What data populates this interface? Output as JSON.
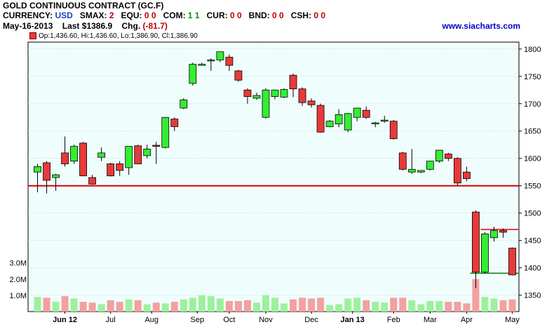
{
  "header": {
    "title": "GOLD CONTINUOUS CONTRACT (GC.F)",
    "currency_label": "CURRENCY:",
    "currency_value": "USD",
    "smax_label": "SMAX:",
    "smax_value": "2",
    "equ_label": "EQU:",
    "equ_value": "0 0",
    "com_label": "COM:",
    "com_value": "1 1",
    "cur_label": "CUR:",
    "cur_value": "0 0",
    "bnd_label": "BND:",
    "bnd_value": "0 0",
    "csh_label": "CSH:",
    "csh_value": "0 0",
    "date": "May-16-2013",
    "last_label": "Last",
    "last_value": "$1386.9",
    "chg_label": "Chg.",
    "chg_value": "(-81.7)",
    "site": "www.siacharts.com",
    "ohlc_legend": "Op:1,436.60, Hi:1,436.60, Lo:1,386.90, Cl:1,386.90"
  },
  "colors": {
    "up": "#33ee33",
    "down": "#e83a3a",
    "plot_bg": "#f0fdfd",
    "support": "#dd0000"
  },
  "chart_data": {
    "type": "candlestick",
    "price_axis": {
      "ticks": [
        1350,
        1400,
        1450,
        1500,
        1550,
        1600,
        1650,
        1700,
        1750,
        1800
      ],
      "range": [
        1320,
        1810
      ]
    },
    "volume_axis": {
      "ticks": [
        "1.0M",
        "2.0M",
        "3.0M"
      ],
      "tick_values": [
        1,
        2,
        3
      ],
      "range": [
        0,
        3.2
      ]
    },
    "x_labels": [
      "Jun 12",
      "Jul",
      "Aug",
      "Sep",
      "Oct",
      "Nov",
      "Dec",
      "Jan 13",
      "Feb",
      "Mar",
      "Apr",
      "May"
    ],
    "x_label_index": [
      3,
      8,
      12.5,
      17.5,
      21,
      25,
      30,
      34.5,
      39,
      43,
      47,
      52
    ],
    "support_line": 1550,
    "resistance_line": 1470,
    "support_line_2": 1390,
    "candles": [
      {
        "o": 1575,
        "h": 1590,
        "l": 1538,
        "c": 1585,
        "v": 0.9
      },
      {
        "o": 1592,
        "h": 1595,
        "l": 1536,
        "c": 1560,
        "v": 0.85
      },
      {
        "o": 1565,
        "h": 1572,
        "l": 1541,
        "c": 1570,
        "v": 0.6
      },
      {
        "o": 1610,
        "h": 1640,
        "l": 1585,
        "c": 1590,
        "v": 0.95
      },
      {
        "o": 1595,
        "h": 1625,
        "l": 1590,
        "c": 1622,
        "v": 0.8
      },
      {
        "o": 1628,
        "h": 1630,
        "l": 1568,
        "c": 1568,
        "v": 0.6
      },
      {
        "o": 1565,
        "h": 1570,
        "l": 1552,
        "c": 1553,
        "v": 0.55
      },
      {
        "o": 1602,
        "h": 1620,
        "l": 1595,
        "c": 1610,
        "v": 0.45
      },
      {
        "o": 1590,
        "h": 1592,
        "l": 1567,
        "c": 1568,
        "v": 0.7
      },
      {
        "o": 1590,
        "h": 1595,
        "l": 1568,
        "c": 1578,
        "v": 0.6
      },
      {
        "o": 1583,
        "h": 1620,
        "l": 1570,
        "c": 1622,
        "v": 0.75
      },
      {
        "o": 1623,
        "h": 1625,
        "l": 1590,
        "c": 1590,
        "v": 0.7
      },
      {
        "o": 1605,
        "h": 1625,
        "l": 1600,
        "c": 1617,
        "v": 0.45
      },
      {
        "o": 1624,
        "h": 1630,
        "l": 1590,
        "c": 1622,
        "v": 0.55
      },
      {
        "o": 1620,
        "h": 1675,
        "l": 1618,
        "c": 1675,
        "v": 0.5
      },
      {
        "o": 1672,
        "h": 1675,
        "l": 1650,
        "c": 1658,
        "v": 0.6
      },
      {
        "o": 1692,
        "h": 1710,
        "l": 1690,
        "c": 1707,
        "v": 0.75
      },
      {
        "o": 1737,
        "h": 1775,
        "l": 1733,
        "c": 1772,
        "v": 0.85
      },
      {
        "o": 1770,
        "h": 1775,
        "l": 1770,
        "c": 1772,
        "v": 1.0
      },
      {
        "o": 1780,
        "h": 1783,
        "l": 1760,
        "c": 1780,
        "v": 0.95
      },
      {
        "o": 1780,
        "h": 1795,
        "l": 1776,
        "c": 1795,
        "v": 0.8
      },
      {
        "o": 1785,
        "h": 1790,
        "l": 1760,
        "c": 1770,
        "v": 0.65
      },
      {
        "o": 1760,
        "h": 1762,
        "l": 1740,
        "c": 1743,
        "v": 0.65
      },
      {
        "o": 1725,
        "h": 1728,
        "l": 1700,
        "c": 1713,
        "v": 0.7
      },
      {
        "o": 1710,
        "h": 1720,
        "l": 1707,
        "c": 1715,
        "v": 0.55
      },
      {
        "o": 1675,
        "h": 1728,
        "l": 1673,
        "c": 1725,
        "v": 1.0
      },
      {
        "o": 1713,
        "h": 1725,
        "l": 1708,
        "c": 1725,
        "v": 0.85
      },
      {
        "o": 1712,
        "h": 1728,
        "l": 1710,
        "c": 1726,
        "v": 0.5
      },
      {
        "o": 1752,
        "h": 1755,
        "l": 1712,
        "c": 1727,
        "v": 0.75
      },
      {
        "o": 1727,
        "h": 1730,
        "l": 1696,
        "c": 1702,
        "v": 0.85
      },
      {
        "o": 1705,
        "h": 1710,
        "l": 1693,
        "c": 1698,
        "v": 0.8
      },
      {
        "o": 1697,
        "h": 1700,
        "l": 1647,
        "c": 1648,
        "v": 0.85
      },
      {
        "o": 1658,
        "h": 1670,
        "l": 1657,
        "c": 1668,
        "v": 0.4
      },
      {
        "o": 1663,
        "h": 1690,
        "l": 1657,
        "c": 1680,
        "v": 0.45
      },
      {
        "o": 1652,
        "h": 1683,
        "l": 1648,
        "c": 1682,
        "v": 0.8
      },
      {
        "o": 1675,
        "h": 1692,
        "l": 1668,
        "c": 1692,
        "v": 0.85
      },
      {
        "o": 1688,
        "h": 1695,
        "l": 1672,
        "c": 1675,
        "v": 0.7
      },
      {
        "o": 1663,
        "h": 1667,
        "l": 1657,
        "c": 1665,
        "v": 0.6
      },
      {
        "o": 1668,
        "h": 1678,
        "l": 1665,
        "c": 1670,
        "v": 0.55
      },
      {
        "o": 1668,
        "h": 1670,
        "l": 1634,
        "c": 1636,
        "v": 0.85
      },
      {
        "o": 1610,
        "h": 1612,
        "l": 1578,
        "c": 1580,
        "v": 0.85
      },
      {
        "o": 1575,
        "h": 1617,
        "l": 1572,
        "c": 1580,
        "v": 0.7
      },
      {
        "o": 1575,
        "h": 1578,
        "l": 1573,
        "c": 1578,
        "v": 0.45
      },
      {
        "o": 1580,
        "h": 1595,
        "l": 1578,
        "c": 1595,
        "v": 0.65
      },
      {
        "o": 1595,
        "h": 1615,
        "l": 1592,
        "c": 1615,
        "v": 0.65
      },
      {
        "o": 1608,
        "h": 1610,
        "l": 1595,
        "c": 1600,
        "v": 0.6
      },
      {
        "o": 1600,
        "h": 1602,
        "l": 1550,
        "c": 1555,
        "v": 0.6
      },
      {
        "o": 1575,
        "h": 1585,
        "l": 1558,
        "c": 1563,
        "v": 0.5
      },
      {
        "o": 1502,
        "h": 1505,
        "l": 1363,
        "c": 1392,
        "v": 2.0
      },
      {
        "o": 1392,
        "h": 1465,
        "l": 1390,
        "c": 1462,
        "v": 0.9
      },
      {
        "o": 1455,
        "h": 1475,
        "l": 1448,
        "c": 1468,
        "v": 0.8
      },
      {
        "o": 1468,
        "h": 1472,
        "l": 1455,
        "c": 1465,
        "v": 0.7
      },
      {
        "o": 1436,
        "h": 1437,
        "l": 1386,
        "c": 1387,
        "v": 0.75
      }
    ]
  }
}
